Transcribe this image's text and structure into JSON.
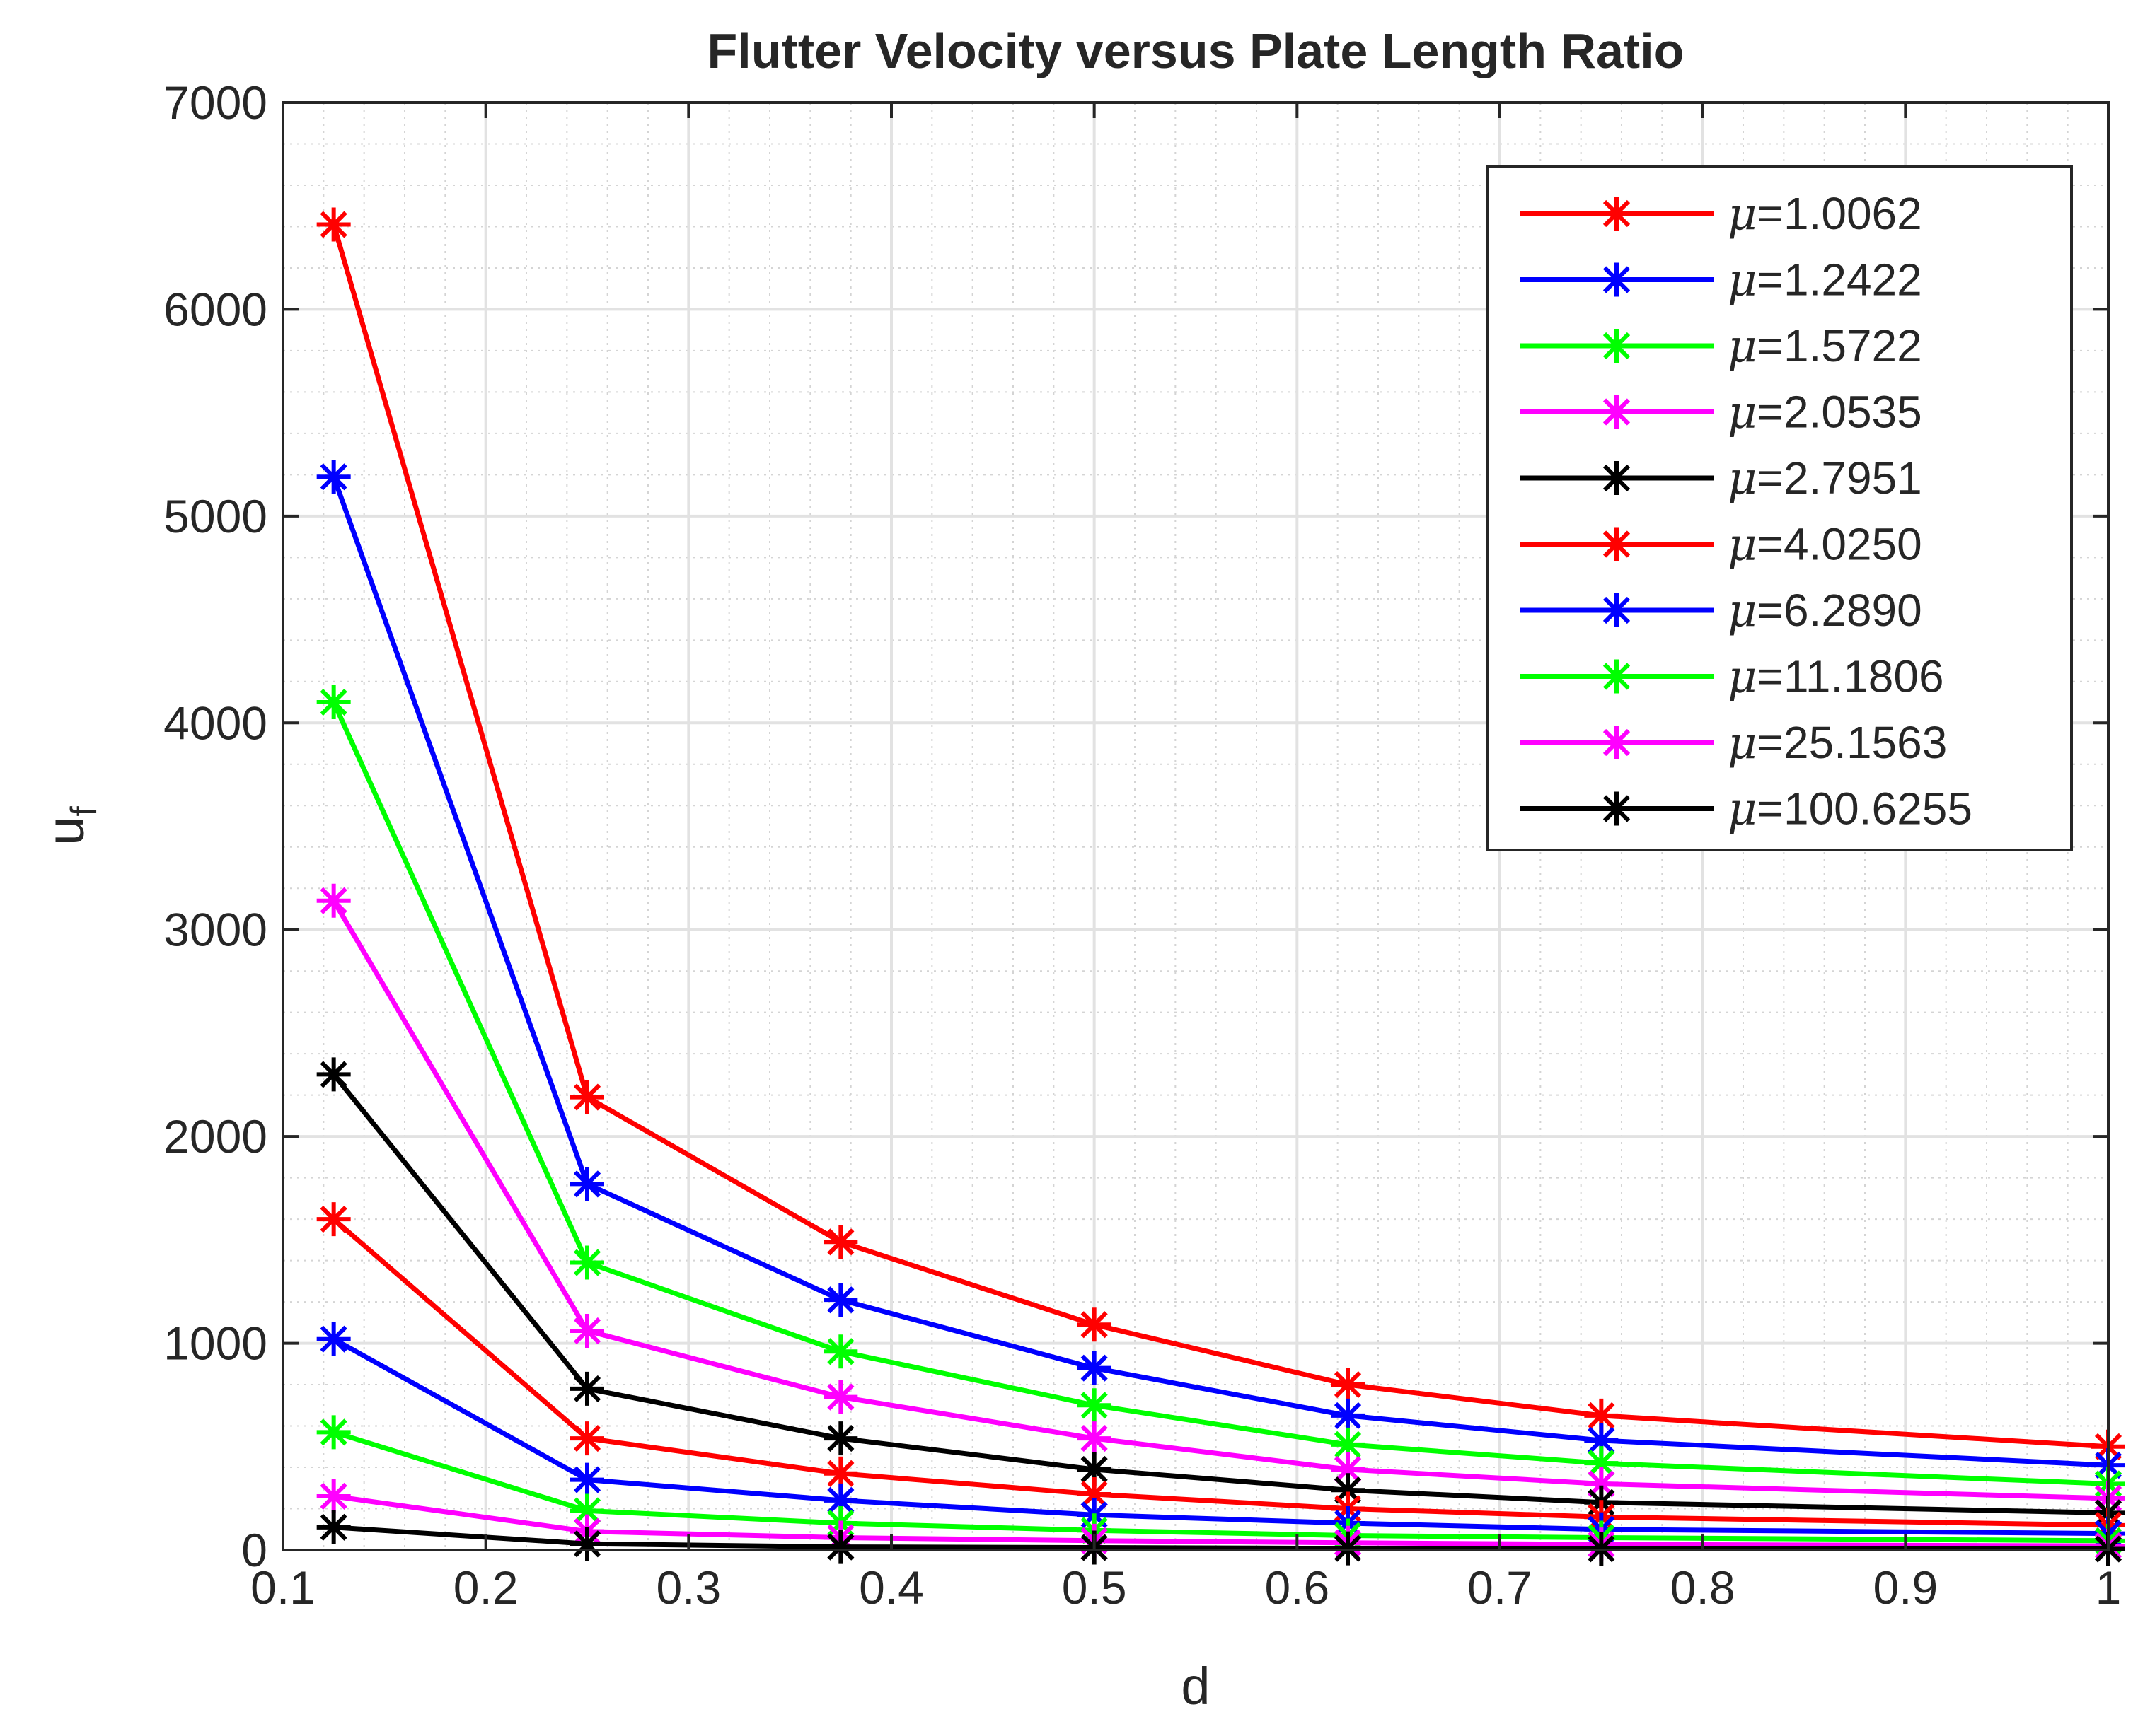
{
  "chart_data": {
    "type": "line",
    "title": "Flutter Velocity versus Plate Length Ratio",
    "xlabel": "d",
    "ylabel": {
      "main": "u",
      "subscript": "f"
    },
    "xlim": [
      0.1,
      1.0
    ],
    "ylim": [
      0,
      7000
    ],
    "x_ticks": [
      "0.1",
      "0.2",
      "0.3",
      "0.4",
      "0.5",
      "0.6",
      "0.7",
      "0.8",
      "0.9",
      "1"
    ],
    "x_tick_values": [
      0.1,
      0.2,
      0.3,
      0.4,
      0.5,
      0.6,
      0.7,
      0.8,
      0.9,
      1.0
    ],
    "y_ticks": [
      "0",
      "1000",
      "2000",
      "3000",
      "4000",
      "5000",
      "6000",
      "7000"
    ],
    "y_tick_values": [
      0,
      1000,
      2000,
      3000,
      4000,
      5000,
      6000,
      7000
    ],
    "grid": true,
    "minor_grid": true,
    "legend_position": "top-right",
    "marker": "asterisk",
    "x": [
      0.125,
      0.25,
      0.375,
      0.5,
      0.625,
      0.75,
      1.0
    ],
    "series": [
      {
        "mu_symbol": "μ",
        "name": "=1.0062",
        "color": "#ff0000",
        "values": [
          6410,
          2190,
          1490,
          1090,
          800,
          650,
          500
        ]
      },
      {
        "mu_symbol": "μ",
        "name": "=1.2422",
        "color": "#0000ff",
        "values": [
          5190,
          1770,
          1210,
          880,
          650,
          530,
          410
        ]
      },
      {
        "mu_symbol": "μ",
        "name": "=1.5722",
        "color": "#00ff00",
        "values": [
          4100,
          1390,
          960,
          700,
          510,
          420,
          320
        ]
      },
      {
        "mu_symbol": "μ",
        "name": "=2.0535",
        "color": "#ff00ff",
        "values": [
          3140,
          1060,
          740,
          540,
          390,
          320,
          250
        ]
      },
      {
        "mu_symbol": "μ",
        "name": "=2.7951",
        "color": "#000000",
        "values": [
          2300,
          780,
          540,
          390,
          290,
          230,
          180
        ]
      },
      {
        "mu_symbol": "μ",
        "name": "=4.0250",
        "color": "#ff0000",
        "values": [
          1600,
          540,
          370,
          270,
          200,
          160,
          120
        ]
      },
      {
        "mu_symbol": "μ",
        "name": "=6.2890",
        "color": "#0000ff",
        "values": [
          1020,
          340,
          240,
          170,
          130,
          100,
          80
        ]
      },
      {
        "mu_symbol": "μ",
        "name": "=11.1806",
        "color": "#00ff00",
        "values": [
          570,
          190,
          130,
          95,
          70,
          60,
          45
        ]
      },
      {
        "mu_symbol": "μ",
        "name": "=25.1563",
        "color": "#ff00ff",
        "values": [
          260,
          90,
          60,
          45,
          35,
          27,
          20
        ]
      },
      {
        "mu_symbol": "μ",
        "name": "=100.6255",
        "color": "#000000",
        "values": [
          110,
          30,
          15,
          12,
          8,
          6,
          5
        ]
      }
    ]
  }
}
